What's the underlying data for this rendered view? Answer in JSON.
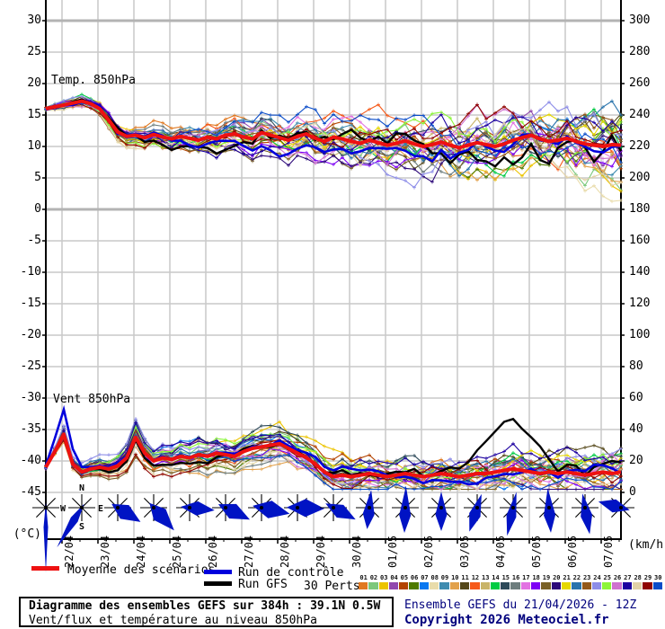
{
  "chart": {
    "temp_label": "Temp. 850hPa",
    "wind_label": "Vent 850hPa",
    "unit_left": "(°C)",
    "unit_right": "(km/h)",
    "left_ticks": [
      30,
      25,
      20,
      15,
      10,
      5,
      0,
      -5,
      -10,
      -15,
      -20,
      -25,
      -30,
      -35,
      -40,
      -45
    ],
    "right_ticks": [
      300,
      280,
      260,
      240,
      220,
      200,
      180,
      160,
      140,
      120,
      100,
      80,
      60,
      40,
      20,
      0
    ],
    "compass": [
      "N",
      "E",
      "S",
      "W"
    ]
  },
  "chart_data": {
    "type": "line",
    "title": "Diagramme des ensembles GEFS sur 384h : 39.1N 0.5W",
    "subtitle": "Vent/flux et température au niveau 850hPa",
    "run": "Ensemble GEFS du 21/04/2026 - 12Z",
    "x_step_hours": 6,
    "x_dates": [
      "22/04",
      "23/04",
      "24/04",
      "25/04",
      "26/04",
      "27/04",
      "28/04",
      "29/04",
      "30/04",
      "01/05",
      "02/05",
      "03/05",
      "04/05",
      "05/05",
      "06/05",
      "07/05"
    ],
    "temp_ylim": [
      -45,
      30
    ],
    "wind_ylim": [
      0,
      300
    ],
    "series": [
      {
        "name": "Moyenne des scénarios",
        "role": "mean",
        "color": "#ee1111",
        "temp": [
          16.0,
          16.3,
          16.6,
          16.9,
          17.2,
          16.8,
          16.0,
          14.2,
          12.3,
          11.6,
          11.8,
          11.4,
          11.9,
          11.5,
          11.2,
          11.6,
          11.3,
          11.0,
          11.5,
          11.2,
          11.8,
          12.0,
          11.5,
          11.2,
          12.2,
          11.8,
          11.4,
          11.0,
          11.6,
          12.0,
          11.3,
          10.8,
          11.5,
          11.2,
          10.8,
          10.5,
          11.0,
          10.6,
          10.2,
          10.5,
          10.9,
          10.4,
          10.0,
          10.3,
          10.7,
          10.2,
          9.8,
          10.2,
          10.6,
          10.3,
          10.0,
          10.4,
          11.0,
          11.4,
          11.8,
          11.2,
          10.8,
          11.0,
          11.3,
          10.8,
          10.4,
          10.2,
          10.0,
          10.3,
          10.2
        ],
        "wind": [
          16,
          26,
          37,
          18,
          13,
          15,
          16,
          15,
          17,
          22,
          35,
          25,
          20,
          22,
          21,
          23,
          22,
          24,
          23,
          25,
          24,
          23,
          26,
          28,
          29,
          30,
          31,
          28,
          25,
          22,
          18,
          13,
          10,
          11,
          10,
          11,
          12,
          11,
          10,
          11,
          12,
          11,
          10,
          11,
          12,
          11,
          10,
          11,
          12,
          12,
          13,
          14,
          15,
          14,
          13,
          12,
          13,
          12,
          13,
          12,
          11,
          12,
          13,
          12,
          13
        ]
      },
      {
        "name": "Run de contrôle",
        "role": "control",
        "color": "#0000dd",
        "gen": {
          "temp": {
            "seed": 77,
            "decay": 0.88,
            "step": 1.0,
            "s0": 0.2,
            "s1": 1.6
          },
          "wind": {
            "seed": 78,
            "decay": 0.88,
            "step": 2.8,
            "s0": 0.3,
            "s1": 1.2,
            "min": 2,
            "bump": {
              "c": 2,
              "w": 1.3,
              "amp": 16
            }
          }
        }
      },
      {
        "name": "Run GFS",
        "role": "gfs",
        "color": "#000000",
        "gen": {
          "temp": {
            "seed": 913,
            "decay": 0.88,
            "step": 1.1,
            "s0": 0.25,
            "s1": 2.0,
            "bump": {
              "c": 17,
              "w": 5,
              "amp": -2.2
            }
          },
          "wind": {
            "seed": 914,
            "decay": 0.88,
            "step": 3.0,
            "s0": 0.3,
            "s1": 1.4,
            "min": 2,
            "bump": {
              "c": 51,
              "w": 4,
              "amp": 24
            }
          }
        }
      }
    ],
    "ensemble": {
      "label": "30 Perts.",
      "count": 30,
      "labels": [
        "01",
        "02",
        "03",
        "04",
        "05",
        "06",
        "07",
        "08",
        "09",
        "10",
        "11",
        "12",
        "13",
        "14",
        "15",
        "16",
        "17",
        "18",
        "19",
        "20",
        "21",
        "22",
        "23",
        "24",
        "25",
        "26",
        "27",
        "28",
        "29",
        "30"
      ],
      "colors": [
        "#e07820",
        "#7cc87c",
        "#ecc400",
        "#9148ae",
        "#b34300",
        "#4e7a00",
        "#0a78f0",
        "#e9dcab",
        "#3f8cb0",
        "#e2a14b",
        "#55481a",
        "#f65a1a",
        "#c9b468",
        "#00cc44",
        "#2e4a5a",
        "#6e7e7e",
        "#e273e2",
        "#7d00f5",
        "#7a6128",
        "#2e0a7a",
        "#e6d800",
        "#2a74ac",
        "#93591b",
        "#8d8de8",
        "#8cf53a",
        "#cf72cf",
        "#1c00a0",
        "#e2d2a8",
        "#8f0500",
        "#0a4cc8"
      ],
      "gen": {
        "temp": {
          "seed": 12345,
          "decay": 0.88,
          "step": 1.1,
          "s0": 0.25,
          "s1": 2.2
        },
        "wind": {
          "seed": 54321,
          "decay": 0.88,
          "step": 3.2,
          "s0": 0.35,
          "s1": 1.6,
          "min": 2,
          "mult": 0.55
        }
      }
    },
    "wind_roses": [
      {
        "a": 180,
        "l1": 72,
        "l2": 6,
        "w": 5
      },
      {
        "a": 212,
        "l1": 52,
        "l2": 5,
        "w": 9
      },
      {
        "a": 122,
        "l1": 30,
        "l2": 8,
        "w": 18
      },
      {
        "a": 138,
        "l1": 34,
        "l2": 7,
        "w": 18
      },
      {
        "a": 96,
        "l1": 28,
        "l2": 10,
        "w": 16
      },
      {
        "a": 116,
        "l1": 30,
        "l2": 9,
        "w": 18
      },
      {
        "a": 102,
        "l1": 32,
        "l2": 10,
        "w": 20
      },
      {
        "a": 92,
        "l1": 30,
        "l2": 12,
        "w": 20
      },
      {
        "a": 118,
        "l1": 28,
        "l2": 10,
        "w": 16
      },
      {
        "a": 186,
        "l1": 24,
        "l2": 20,
        "w": 13
      },
      {
        "a": 182,
        "l1": 28,
        "l2": 24,
        "w": 13
      },
      {
        "a": 180,
        "l1": 26,
        "l2": 18,
        "w": 13
      },
      {
        "a": 198,
        "l1": 28,
        "l2": 16,
        "w": 13
      },
      {
        "a": 192,
        "l1": 32,
        "l2": 18,
        "w": 11
      },
      {
        "a": 176,
        "l1": 28,
        "l2": 22,
        "w": 13
      },
      {
        "a": 170,
        "l1": 30,
        "l2": 16,
        "w": 13
      },
      {
        "a": 285,
        "l1": 26,
        "l2": 10,
        "w": 15
      }
    ],
    "arrow_color": "#0013c4"
  },
  "legend": {
    "mean_label": "Moyenne des scénarios",
    "mean_color": "#ee1111",
    "control_label": "Run de contrôle",
    "control_color": "#0000dd",
    "gfs_label": "Run GFS",
    "gfs_color": "#000000",
    "perts_label": "30 Perts."
  },
  "footer": {
    "title": "Diagramme des ensembles GEFS sur 384h : 39.1N 0.5W",
    "subtitle": "Vent/flux et température au niveau 850hPa",
    "run_info": "Ensemble GEFS du 21/04/2026 - 12Z",
    "copyright": "Copyright 2026 Meteociel.fr"
  }
}
